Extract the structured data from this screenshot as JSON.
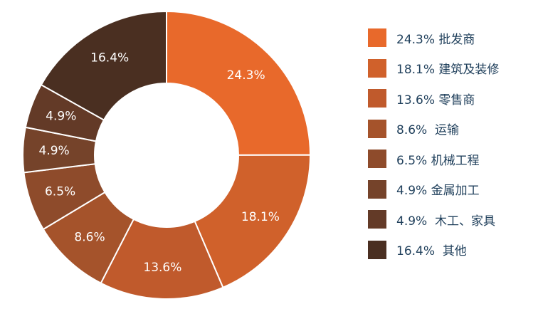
{
  "chart_data": {
    "type": "pie",
    "categories": [
      "批发商",
      "建筑及装修",
      "零售商",
      "运输",
      "机械工程",
      "金属加工",
      "木工、家具",
      "其他"
    ],
    "values": [
      24.3,
      18.1,
      13.6,
      8.6,
      6.5,
      4.9,
      4.9,
      16.4
    ],
    "value_labels": [
      "24.3%",
      "18.1%",
      "13.6%",
      "8.6%",
      "6.5%",
      "4.9%",
      "4.9%",
      "16.4%"
    ],
    "legend_labels": [
      "24.3% 批发商",
      "18.1% 建筑及装修",
      "13.6% 零售商",
      "8.6%  运输",
      "6.5% 机械工程",
      "4.9% 金属加工",
      "4.9%  木工、家具",
      "16.4%  其他"
    ],
    "colors": [
      "#e8692b",
      "#d0612b",
      "#c05a2c",
      "#a5532b",
      "#8e4b2b",
      "#75432a",
      "#633a27",
      "#4a2f21"
    ],
    "legend_position": "right",
    "donut": true
  }
}
